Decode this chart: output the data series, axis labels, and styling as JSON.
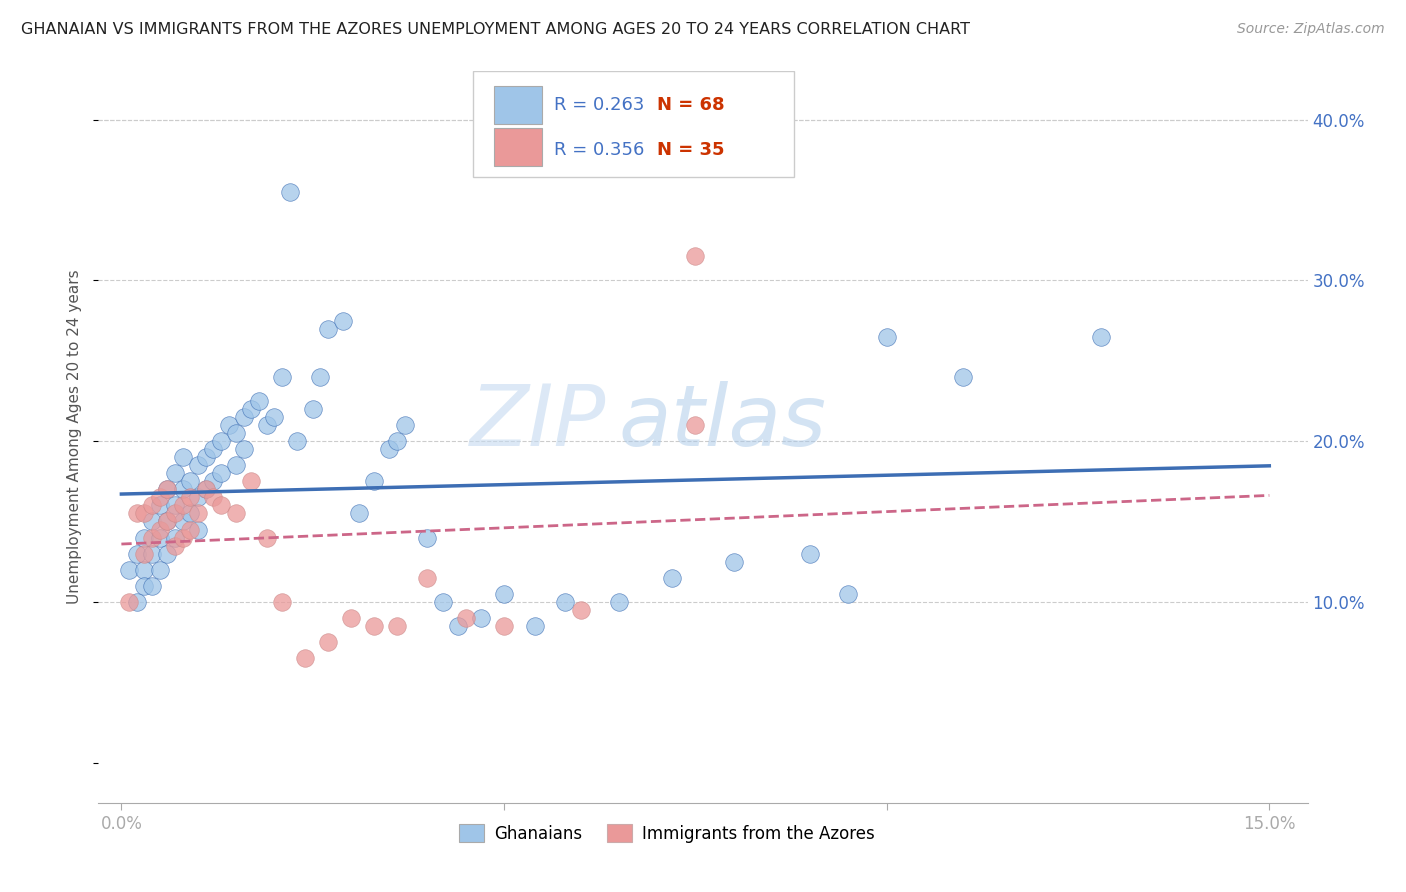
{
  "title": "GHANAIAN VS IMMIGRANTS FROM THE AZORES UNEMPLOYMENT AMONG AGES 20 TO 24 YEARS CORRELATION CHART",
  "source": "Source: ZipAtlas.com",
  "ylabel": "Unemployment Among Ages 20 to 24 years",
  "blue_color": "#9fc5e8",
  "pink_color": "#ea9999",
  "blue_line_color": "#3d6eb4",
  "pink_line_color": "#cc6688",
  "title_color": "#222222",
  "source_color": "#999999",
  "label_color": "#4472c4",
  "n_color": "#cc3300",
  "legend_label1": "Ghanaians",
  "legend_label2": "Immigrants from the Azores",
  "watermark1": "ZIP",
  "watermark2": "atlas",
  "grid_color": "#cccccc",
  "bg_color": "#ffffff",
  "blue_scatter_x": [
    0.001,
    0.002,
    0.002,
    0.003,
    0.003,
    0.003,
    0.004,
    0.004,
    0.004,
    0.005,
    0.005,
    0.005,
    0.006,
    0.006,
    0.006,
    0.007,
    0.007,
    0.007,
    0.008,
    0.008,
    0.008,
    0.009,
    0.009,
    0.01,
    0.01,
    0.01,
    0.011,
    0.011,
    0.012,
    0.012,
    0.013,
    0.013,
    0.014,
    0.015,
    0.015,
    0.016,
    0.016,
    0.017,
    0.018,
    0.019,
    0.02,
    0.021,
    0.022,
    0.023,
    0.025,
    0.026,
    0.027,
    0.029,
    0.031,
    0.033,
    0.035,
    0.036,
    0.037,
    0.04,
    0.042,
    0.044,
    0.047,
    0.05,
    0.054,
    0.058,
    0.065,
    0.072,
    0.08,
    0.09,
    0.095,
    0.1,
    0.11,
    0.128
  ],
  "blue_scatter_y": [
    0.12,
    0.13,
    0.1,
    0.14,
    0.12,
    0.11,
    0.15,
    0.13,
    0.11,
    0.16,
    0.14,
    0.12,
    0.17,
    0.15,
    0.13,
    0.18,
    0.16,
    0.14,
    0.19,
    0.17,
    0.15,
    0.175,
    0.155,
    0.185,
    0.165,
    0.145,
    0.19,
    0.17,
    0.195,
    0.175,
    0.2,
    0.18,
    0.21,
    0.205,
    0.185,
    0.215,
    0.195,
    0.22,
    0.225,
    0.21,
    0.215,
    0.24,
    0.355,
    0.2,
    0.22,
    0.24,
    0.27,
    0.275,
    0.155,
    0.175,
    0.195,
    0.2,
    0.21,
    0.14,
    0.1,
    0.085,
    0.09,
    0.105,
    0.085,
    0.1,
    0.1,
    0.115,
    0.125,
    0.13,
    0.105,
    0.265,
    0.24,
    0.265
  ],
  "pink_scatter_x": [
    0.001,
    0.002,
    0.003,
    0.003,
    0.004,
    0.004,
    0.005,
    0.005,
    0.006,
    0.006,
    0.007,
    0.007,
    0.008,
    0.008,
    0.009,
    0.009,
    0.01,
    0.011,
    0.012,
    0.013,
    0.015,
    0.017,
    0.019,
    0.021,
    0.024,
    0.027,
    0.03,
    0.033,
    0.036,
    0.04,
    0.045,
    0.05,
    0.06,
    0.075,
    0.075
  ],
  "pink_scatter_y": [
    0.1,
    0.155,
    0.155,
    0.13,
    0.16,
    0.14,
    0.165,
    0.145,
    0.17,
    0.15,
    0.155,
    0.135,
    0.16,
    0.14,
    0.165,
    0.145,
    0.155,
    0.17,
    0.165,
    0.16,
    0.155,
    0.175,
    0.14,
    0.1,
    0.065,
    0.075,
    0.09,
    0.085,
    0.085,
    0.115,
    0.09,
    0.085,
    0.095,
    0.21,
    0.315
  ]
}
